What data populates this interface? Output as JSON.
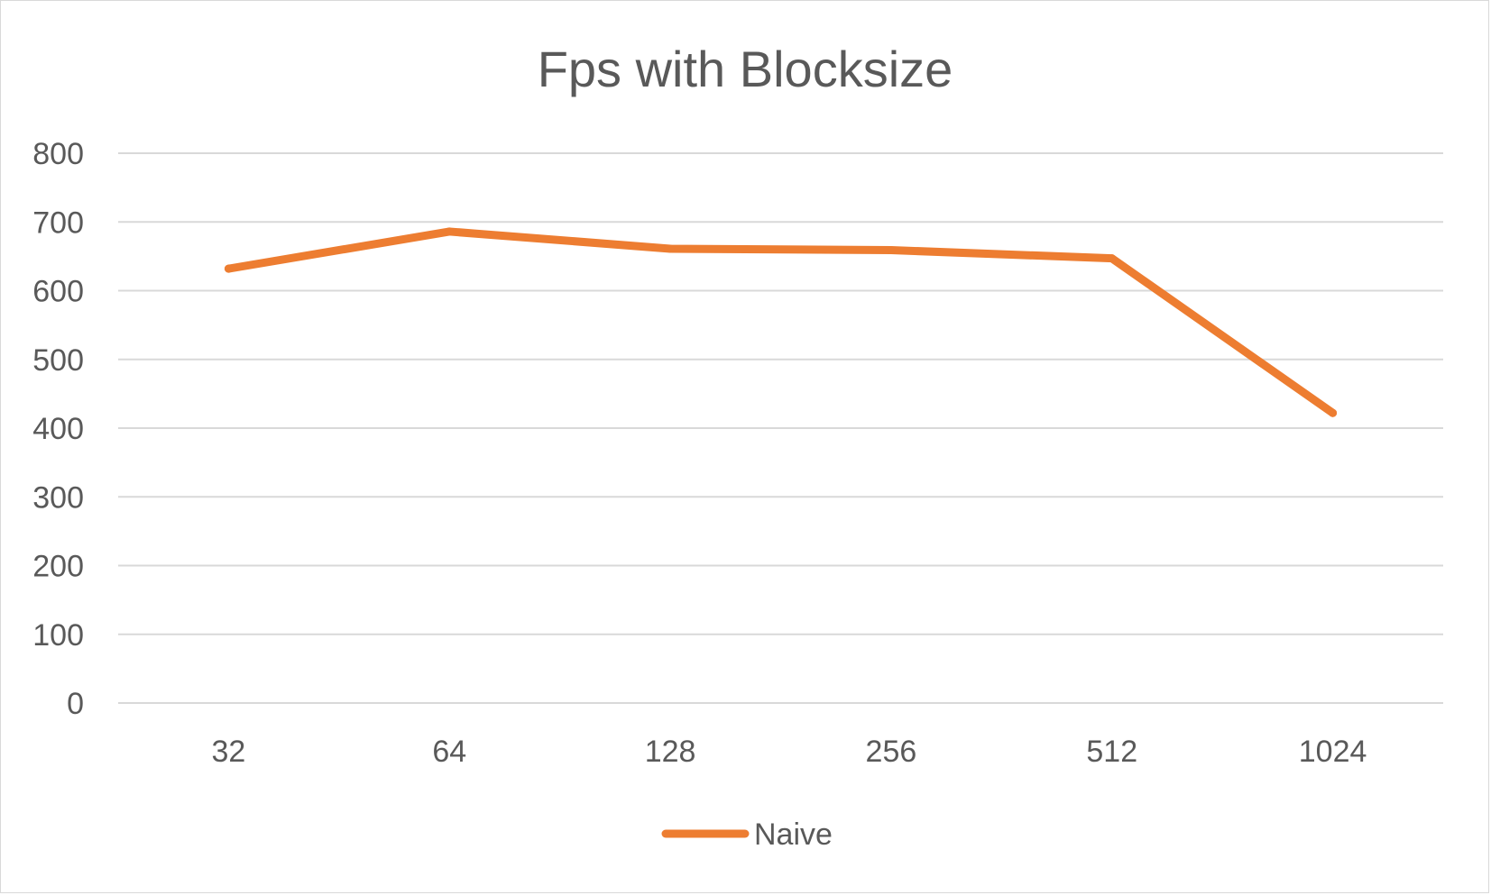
{
  "chart_data": {
    "type": "line",
    "title": "Fps with Blocksize",
    "xlabel": "",
    "ylabel": "",
    "categories": [
      "32",
      "64",
      "128",
      "256",
      "512",
      "1024"
    ],
    "ylim": [
      0,
      800
    ],
    "y_ticks": [
      "0",
      "100",
      "200",
      "300",
      "400",
      "500",
      "600",
      "700",
      "800"
    ],
    "grid": true,
    "legend_position": "bottom",
    "series": [
      {
        "name": "Naive",
        "color": "#ED7D31",
        "values": [
          632,
          686,
          661,
          659,
          647,
          422
        ]
      }
    ]
  }
}
